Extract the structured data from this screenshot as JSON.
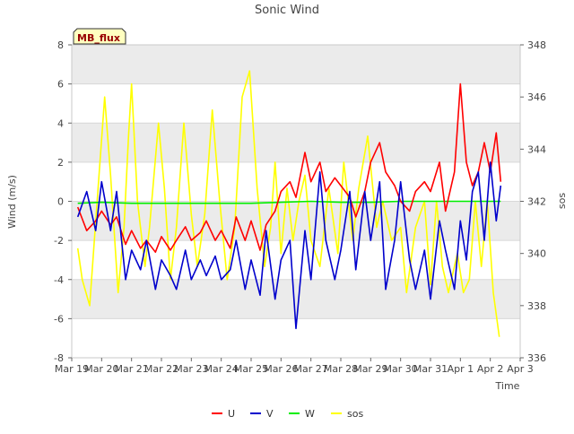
{
  "chart_data": {
    "type": "line",
    "title": "Sonic Wind",
    "xlabel": "Time",
    "ylabel": "Wind (m/s)",
    "y2label": "sos",
    "badge": "MB_flux",
    "x_ticks": [
      "Mar 19",
      "Mar 20",
      "Mar 21",
      "Mar 22",
      "Mar 23",
      "Mar 24",
      "Mar 25",
      "Mar 26",
      "Mar 27",
      "Mar 28",
      "Mar 29",
      "Mar 30",
      "Mar 31",
      "Apr 1",
      "Apr 2",
      "Apr 3"
    ],
    "xlim": [
      0,
      15
    ],
    "ylim": [
      -8,
      8
    ],
    "y_ticks": [
      "-8",
      "-6",
      "-4",
      "-2",
      "0",
      "2",
      "4",
      "6",
      "8"
    ],
    "y2lim": [
      336,
      348
    ],
    "y2_ticks": [
      "336",
      "338",
      "340",
      "342",
      "344",
      "346",
      "348"
    ],
    "grid": true,
    "legend_position": "bottom-center",
    "colors": {
      "U": "#ff0000",
      "V": "#0000cc",
      "W": "#00ee00",
      "sos": "#ffff00",
      "band": "#ebebeb"
    },
    "series": [
      {
        "name": "U",
        "axis": "left",
        "x": [
          0.2,
          0.5,
          0.8,
          1.0,
          1.3,
          1.5,
          1.8,
          2.0,
          2.3,
          2.5,
          2.8,
          3.0,
          3.3,
          3.5,
          3.8,
          4.0,
          4.3,
          4.5,
          4.8,
          5.0,
          5.3,
          5.5,
          5.8,
          6.0,
          6.3,
          6.5,
          6.8,
          7.0,
          7.3,
          7.5,
          7.8,
          8.0,
          8.3,
          8.5,
          8.8,
          9.0,
          9.3,
          9.5,
          9.8,
          10.0,
          10.3,
          10.5,
          10.8,
          11.0,
          11.3,
          11.5,
          11.8,
          12.0,
          12.3,
          12.5,
          12.8,
          13.0,
          13.2,
          13.4,
          13.6,
          13.8,
          14.0,
          14.2,
          14.35
        ],
        "y": [
          -0.3,
          -1.5,
          -1.0,
          -0.5,
          -1.2,
          -0.8,
          -2.2,
          -1.5,
          -2.4,
          -2.0,
          -2.6,
          -1.8,
          -2.5,
          -2.0,
          -1.3,
          -2.0,
          -1.6,
          -1.0,
          -2.0,
          -1.5,
          -2.4,
          -0.8,
          -2.0,
          -1.0,
          -2.5,
          -1.2,
          -0.5,
          0.5,
          1.0,
          0.2,
          2.5,
          1.0,
          2.0,
          0.5,
          1.2,
          0.8,
          0.2,
          -0.8,
          0.5,
          2.0,
          3.0,
          1.5,
          0.8,
          0.0,
          -0.5,
          0.5,
          1.0,
          0.5,
          2.0,
          -0.5,
          1.5,
          6.0,
          2.0,
          0.8,
          1.5,
          3.0,
          1.5,
          3.5,
          1.0
        ]
      },
      {
        "name": "V",
        "axis": "left",
        "x": [
          0.2,
          0.5,
          0.8,
          1.0,
          1.3,
          1.5,
          1.8,
          2.0,
          2.3,
          2.5,
          2.8,
          3.0,
          3.3,
          3.5,
          3.8,
          4.0,
          4.3,
          4.5,
          4.8,
          5.0,
          5.3,
          5.5,
          5.8,
          6.0,
          6.3,
          6.5,
          6.8,
          7.0,
          7.3,
          7.5,
          7.8,
          8.0,
          8.3,
          8.5,
          8.8,
          9.0,
          9.3,
          9.5,
          9.8,
          10.0,
          10.3,
          10.5,
          10.8,
          11.0,
          11.3,
          11.5,
          11.8,
          12.0,
          12.3,
          12.5,
          12.8,
          13.0,
          13.2,
          13.4,
          13.6,
          13.8,
          14.0,
          14.2,
          14.35
        ],
        "y": [
          -0.8,
          0.5,
          -1.5,
          1.0,
          -1.5,
          0.5,
          -4.0,
          -2.5,
          -3.5,
          -2.0,
          -4.5,
          -3.0,
          -3.8,
          -4.5,
          -2.5,
          -4.0,
          -3.0,
          -3.8,
          -2.8,
          -4.0,
          -3.5,
          -2.0,
          -4.5,
          -3.0,
          -4.8,
          -1.5,
          -5.0,
          -3.0,
          -2.0,
          -6.5,
          -1.5,
          -4.0,
          1.5,
          -2.0,
          -4.0,
          -2.5,
          0.5,
          -3.5,
          0.5,
          -2.0,
          1.0,
          -4.5,
          -2.0,
          1.0,
          -3.0,
          -4.5,
          -2.5,
          -5.0,
          -1.0,
          -2.5,
          -4.5,
          -1.0,
          -3.0,
          0.5,
          1.5,
          -2.0,
          2.0,
          -1.0,
          0.8
        ]
      },
      {
        "name": "W",
        "axis": "left",
        "x": [
          0.2,
          1.0,
          2.0,
          3.0,
          4.0,
          5.0,
          6.0,
          7.0,
          8.0,
          9.0,
          10.0,
          11.0,
          12.0,
          13.0,
          14.0,
          14.35
        ],
        "y": [
          -0.1,
          -0.05,
          -0.1,
          -0.1,
          -0.1,
          -0.1,
          -0.1,
          -0.05,
          0.0,
          -0.05,
          -0.05,
          0.0,
          0.0,
          0.0,
          0.0,
          0.0
        ]
      },
      {
        "name": "sos",
        "axis": "right",
        "x": [
          0.2,
          0.35,
          0.6,
          0.85,
          1.1,
          1.3,
          1.55,
          1.75,
          1.9,
          2.0,
          2.2,
          2.45,
          2.6,
          2.9,
          3.1,
          3.3,
          3.5,
          3.75,
          4.0,
          4.2,
          4.45,
          4.7,
          4.95,
          5.2,
          5.45,
          5.7,
          5.95,
          6.2,
          6.45,
          6.65,
          6.8,
          7.0,
          7.2,
          7.4,
          7.6,
          7.8,
          8.0,
          8.3,
          8.6,
          8.9,
          9.1,
          9.4,
          9.6,
          9.9,
          10.2,
          10.4,
          10.7,
          11.0,
          11.2,
          11.5,
          11.8,
          12.0,
          12.2,
          12.4,
          12.6,
          12.9,
          13.1,
          13.3,
          13.5,
          13.7,
          13.9,
          14.1,
          14.3
        ],
        "y": [
          340.2,
          339.0,
          338.0,
          342.0,
          346.0,
          343.0,
          338.5,
          341.0,
          344.5,
          346.5,
          342.0,
          339.5,
          341.0,
          345.0,
          342.5,
          339.0,
          341.0,
          345.0,
          341.5,
          339.5,
          341.5,
          345.5,
          342.0,
          339.0,
          341.0,
          346.0,
          347.0,
          342.5,
          339.5,
          341.0,
          343.5,
          340.0,
          342.5,
          340.5,
          342.0,
          343.0,
          340.5,
          339.5,
          342.5,
          340.0,
          343.5,
          340.5,
          342.5,
          344.5,
          341.0,
          342.0,
          340.5,
          341.0,
          338.5,
          341.0,
          342.0,
          338.8,
          342.0,
          339.5,
          338.5,
          340.0,
          338.5,
          339.0,
          342.0,
          339.5,
          342.0,
          338.5,
          336.8
        ]
      }
    ]
  }
}
